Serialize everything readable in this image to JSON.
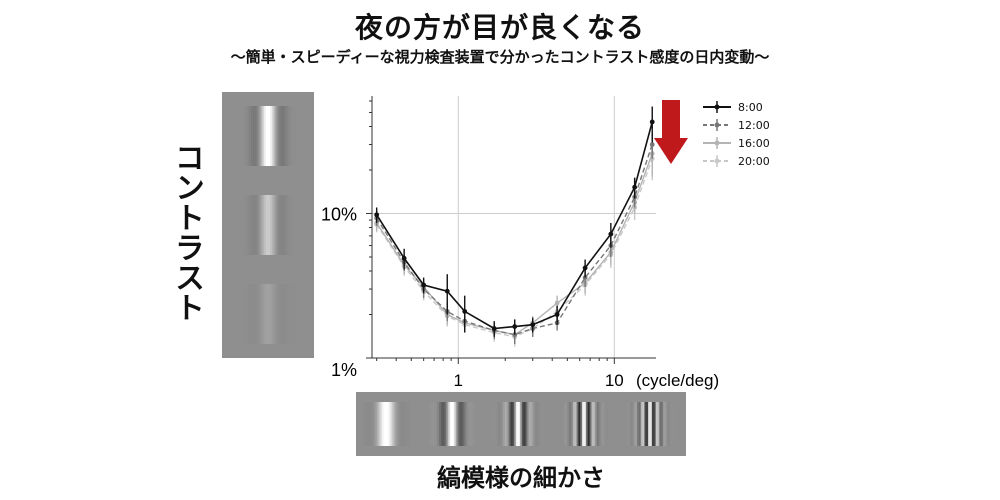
{
  "header": {
    "title": "夜の方が目が良くなる",
    "subtitle": "〜簡単・スピーディーな視力検査装置で分かったコントラスト感度の日内変動〜"
  },
  "labels": {
    "y_axis": "コントラスト",
    "x_axis": "縞模様の細かさ"
  },
  "stimuli": {
    "contrast_levels": [
      1.0,
      0.5,
      0.15
    ],
    "frequency_cycles": [
      1,
      2.5,
      4,
      5.5,
      7
    ]
  },
  "colors": {
    "arrow": "#c0191b",
    "series_8": "#111111",
    "series_12": "#777777",
    "series_16": "#b4b4b4",
    "series_20": "#c8c8c8",
    "grid": "#cccccc",
    "stimulus_bg": "#8f8f8f"
  },
  "chart_data": {
    "type": "line",
    "title": "",
    "xlabel": "(cycle/deg)",
    "ylabel": "",
    "x_scale": "log",
    "y_scale": "log",
    "xlim": [
      0.28,
      18.5
    ],
    "ylim": [
      1,
      65
    ],
    "x_ticks": [
      {
        "value": 1,
        "label": "1"
      },
      {
        "value": 10,
        "label": "10"
      }
    ],
    "y_ticks": [
      {
        "value": 10,
        "label": "10%"
      },
      {
        "value": 1,
        "label": "1%"
      }
    ],
    "grid": true,
    "legend_position": "top-right",
    "series": [
      {
        "name": "8:00",
        "style": "solid",
        "color": "#111111",
        "x": [
          0.3,
          0.45,
          0.6,
          0.85,
          1.1,
          1.7,
          2.3,
          3.0,
          4.3,
          6.5,
          9.5,
          13.5,
          17.5
        ],
        "y": [
          9.8,
          4.9,
          3.2,
          2.9,
          2.1,
          1.6,
          1.65,
          1.7,
          2.0,
          4.2,
          7.2,
          15.2,
          43.0
        ],
        "err": [
          1.2,
          0.8,
          0.4,
          0.9,
          0.6,
          0.2,
          0.2,
          0.2,
          0.3,
          0.6,
          1.4,
          2.5,
          12.0
        ]
      },
      {
        "name": "12:00",
        "style": "dashed",
        "color": "#777777",
        "x": [
          0.3,
          0.45,
          0.6,
          0.85,
          1.1,
          1.7,
          2.3,
          3.0,
          4.3,
          6.5,
          9.5,
          13.5,
          17.5
        ],
        "y": [
          9.3,
          4.6,
          3.0,
          2.1,
          1.8,
          1.55,
          1.45,
          1.6,
          1.75,
          3.6,
          6.0,
          13.0,
          30.0
        ],
        "err": [
          1.1,
          0.6,
          0.4,
          0.3,
          0.2,
          0.2,
          0.2,
          0.2,
          0.2,
          0.5,
          1.0,
          2.0,
          6.0
        ]
      },
      {
        "name": "16:00",
        "style": "solid",
        "color": "#b4b4b4",
        "x": [
          0.3,
          0.45,
          0.6,
          0.85,
          1.1,
          1.7,
          2.3,
          3.0,
          4.3,
          6.5,
          9.5,
          13.5,
          17.5
        ],
        "y": [
          8.6,
          4.4,
          3.1,
          2.0,
          1.75,
          1.55,
          1.45,
          1.75,
          2.4,
          3.3,
          5.4,
          12.0,
          26.0
        ],
        "err": [
          1.0,
          0.6,
          0.4,
          0.3,
          0.2,
          0.2,
          0.2,
          0.2,
          0.3,
          0.5,
          1.0,
          2.0,
          8.0
        ]
      },
      {
        "name": "20:00",
        "style": "dashed",
        "color": "#c8c8c8",
        "x": [
          0.3,
          0.45,
          0.6,
          0.85,
          1.1,
          1.7,
          2.3,
          3.0,
          4.3,
          6.5,
          9.5,
          13.5,
          17.5
        ],
        "y": [
          8.4,
          4.3,
          2.9,
          1.95,
          1.7,
          1.5,
          1.4,
          1.6,
          2.1,
          3.2,
          5.2,
          11.0,
          24.0
        ],
        "err": [
          1.0,
          0.6,
          0.4,
          0.3,
          0.2,
          0.2,
          0.2,
          0.2,
          0.3,
          0.5,
          1.0,
          2.0,
          7.0
        ]
      }
    ]
  }
}
